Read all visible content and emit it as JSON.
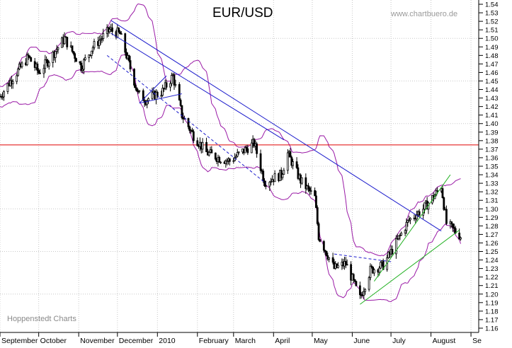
{
  "chart_data": {
    "type": "candlestick",
    "title": "EUR/USD",
    "watermark": "www.chartbuero.de",
    "source": "Hoppenstedt Charts",
    "xlabel": "",
    "ylabel": "",
    "ylim": [
      1.155,
      1.545
    ],
    "yticks": [
      1.16,
      1.17,
      1.18,
      1.19,
      1.2,
      1.21,
      1.22,
      1.23,
      1.24,
      1.25,
      1.26,
      1.27,
      1.28,
      1.29,
      1.3,
      1.31,
      1.32,
      1.33,
      1.34,
      1.35,
      1.36,
      1.37,
      1.38,
      1.39,
      1.4,
      1.41,
      1.42,
      1.43,
      1.44,
      1.45,
      1.46,
      1.47,
      1.48,
      1.49,
      1.5,
      1.51,
      1.52,
      1.53,
      1.54
    ],
    "ytick_labels": [
      "1.16",
      "1.17",
      "1.18",
      "1.19",
      "1.20",
      "1.21",
      "1.22",
      "1.23",
      "1.24",
      "1.25",
      "1.26",
      "1.27",
      "1.28",
      "1.29",
      "1.30",
      "1.31",
      "1.32",
      "1.33",
      "1.34",
      "1.35",
      "1.36",
      "1.37",
      "1.38",
      "1.39",
      "1.40",
      "1.41",
      "1.42",
      "1.43",
      "1.44",
      "1.45",
      "1.46",
      "1.47",
      "1.48",
      "1.49",
      "1.50",
      "1.51",
      "1.52",
      "1.53",
      "1.54"
    ],
    "x_range": [
      "2009-09-01",
      "2010-09-07"
    ],
    "months": [
      {
        "label": "September",
        "date": "2009-09-01"
      },
      {
        "label": "October",
        "date": "2009-10-01"
      },
      {
        "label": "November",
        "date": "2009-11-01"
      },
      {
        "label": "December",
        "date": "2009-12-01"
      },
      {
        "label": "2010",
        "date": "2010-01-01"
      },
      {
        "label": "February",
        "date": "2010-02-01"
      },
      {
        "label": "March",
        "date": "2010-03-01"
      },
      {
        "label": "April",
        "date": "2010-04-01"
      },
      {
        "label": "May",
        "date": "2010-05-01"
      },
      {
        "label": "June",
        "date": "2010-06-01"
      },
      {
        "label": "July",
        "date": "2010-07-01"
      },
      {
        "label": "August",
        "date": "2010-08-01"
      },
      {
        "label": "Se",
        "date": "2010-09-01"
      }
    ],
    "grid": true,
    "price_anchors": [
      [
        "2009-09-01",
        1.432
      ],
      [
        "2009-09-10",
        1.452
      ],
      [
        "2009-09-23",
        1.478
      ],
      [
        "2009-10-01",
        1.46
      ],
      [
        "2009-10-09",
        1.475
      ],
      [
        "2009-10-21",
        1.5
      ],
      [
        "2009-11-03",
        1.467
      ],
      [
        "2009-11-12",
        1.49
      ],
      [
        "2009-11-25",
        1.51
      ],
      [
        "2009-12-03",
        1.505
      ],
      [
        "2009-12-10",
        1.47
      ],
      [
        "2009-12-17",
        1.435
      ],
      [
        "2009-12-23",
        1.428
      ],
      [
        "2010-01-05",
        1.438
      ],
      [
        "2010-01-13",
        1.456
      ],
      [
        "2010-01-20",
        1.41
      ],
      [
        "2010-01-29",
        1.386
      ],
      [
        "2010-02-08",
        1.366
      ],
      [
        "2010-02-17",
        1.36
      ],
      [
        "2010-02-26",
        1.356
      ],
      [
        "2010-03-05",
        1.364
      ],
      [
        "2010-03-17",
        1.377
      ],
      [
        "2010-03-25",
        1.332
      ],
      [
        "2010-04-07",
        1.34
      ],
      [
        "2010-04-12",
        1.365
      ],
      [
        "2010-04-22",
        1.333
      ],
      [
        "2010-05-03",
        1.313
      ],
      [
        "2010-05-06",
        1.268
      ],
      [
        "2010-05-18",
        1.23
      ],
      [
        "2010-05-27",
        1.236
      ],
      [
        "2010-06-07",
        1.195
      ],
      [
        "2010-06-15",
        1.228
      ],
      [
        "2010-06-25",
        1.234
      ],
      [
        "2010-07-02",
        1.252
      ],
      [
        "2010-07-15",
        1.287
      ],
      [
        "2010-07-26",
        1.3
      ],
      [
        "2010-08-05",
        1.318
      ],
      [
        "2010-08-09",
        1.327
      ],
      [
        "2010-08-13",
        1.283
      ],
      [
        "2010-08-24",
        1.268
      ]
    ],
    "horizontal_line": {
      "y": 1.375,
      "color": "#e00000"
    },
    "series": [
      {
        "type": "trendline",
        "color": "#1c1ccc",
        "style": "solid",
        "points": [
          [
            "2009-11-26",
            1.521
          ],
          [
            "2010-08-09",
            1.274
          ]
        ]
      },
      {
        "type": "trendline",
        "color": "#1c1ccc",
        "style": "solid",
        "points": [
          [
            "2009-11-26",
            1.506
          ],
          [
            "2010-04-09",
            1.381
          ]
        ]
      },
      {
        "type": "trendline",
        "color": "#1c1ccc",
        "style": "dashed",
        "points": [
          [
            "2009-11-23",
            1.48
          ],
          [
            "2010-03-26",
            1.33
          ]
        ]
      },
      {
        "type": "trendline",
        "color": "#1c1ccc",
        "style": "dashed",
        "points": [
          [
            "2010-05-18",
            1.247
          ],
          [
            "2010-07-01",
            1.238
          ]
        ]
      },
      {
        "type": "trendline",
        "color": "#1c1ccc",
        "style": "solid",
        "points": [
          [
            "2009-12-18",
            1.424
          ],
          [
            "2010-01-08",
            1.456
          ]
        ]
      },
      {
        "type": "trendline",
        "color": "#1c1ccc",
        "style": "solid",
        "points": [
          [
            "2009-12-18",
            1.424
          ],
          [
            "2010-01-20",
            1.435
          ]
        ]
      },
      {
        "type": "trendline",
        "color": "#20b020",
        "style": "solid",
        "points": [
          [
            "2010-06-07",
            1.188
          ],
          [
            "2010-08-23",
            1.275
          ]
        ]
      },
      {
        "type": "trendline",
        "color": "#20b020",
        "style": "solid",
        "points": [
          [
            "2010-06-18",
            1.215
          ],
          [
            "2010-08-16",
            1.34
          ]
        ]
      }
    ],
    "bollinger": {
      "color": "#9a1aa6",
      "period": 20,
      "stddev": 2
    }
  }
}
